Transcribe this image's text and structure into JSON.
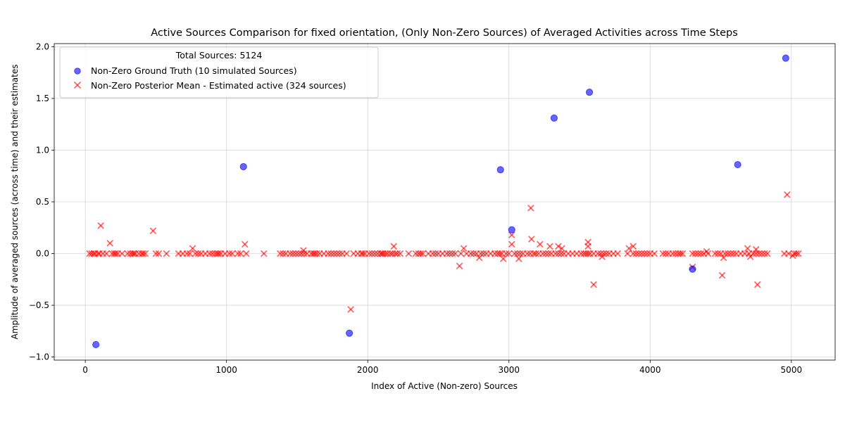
{
  "chart_data": {
    "type": "scatter",
    "title": "Active Sources Comparison for fixed orientation, (Only Non-Zero Sources) of Averaged Activities across Time Steps",
    "xlabel": "Index of Active (Non-zero) Sources",
    "ylabel": "Amplitude of averaged sources (across time) and their estimates",
    "xlim": [
      -220,
      5310
    ],
    "ylim": [
      -1.03,
      2.03
    ],
    "xticks": [
      0,
      1000,
      2000,
      3000,
      4000,
      5000
    ],
    "yticks": [
      -1.0,
      -0.5,
      0.0,
      0.5,
      1.0,
      1.5,
      2.0
    ],
    "xtick_labels": [
      "0",
      "1000",
      "2000",
      "3000",
      "4000",
      "5000"
    ],
    "ytick_labels": [
      "−1.0",
      "−0.5",
      "0.0",
      "0.5",
      "1.0",
      "1.5",
      "2.0"
    ],
    "grid": true,
    "legend": {
      "placement": "top-left",
      "title": "Total Sources: 5124",
      "entries": [
        {
          "label": "Non-Zero Ground Truth (10 simulated Sources)",
          "color": "#0000ff",
          "marker": "circle"
        },
        {
          "label": "Non-Zero Posterior Mean - Estimated active (324 sources)",
          "color": "#ff0000",
          "marker": "x"
        }
      ]
    },
    "series": [
      {
        "name": "Non-Zero Ground Truth (10 simulated Sources)",
        "color": "#0000ff",
        "marker": "circle",
        "points": [
          [
            75,
            -0.88
          ],
          [
            1120,
            0.84
          ],
          [
            1870,
            -0.77
          ],
          [
            2940,
            0.81
          ],
          [
            3020,
            0.23
          ],
          [
            3320,
            1.31
          ],
          [
            3570,
            1.56
          ],
          [
            4300,
            -0.15
          ],
          [
            4620,
            0.86
          ],
          [
            4960,
            1.89
          ]
        ]
      },
      {
        "name": "Non-Zero Posterior Mean - Estimated active (324 sources)",
        "color": "#ff0000",
        "marker": "x",
        "points": [
          [
            110,
            0.27
          ],
          [
            175,
            0.1
          ],
          [
            480,
            0.22
          ],
          [
            760,
            0.05
          ],
          [
            1130,
            0.09
          ],
          [
            1545,
            0.03
          ],
          [
            1880,
            -0.54
          ],
          [
            2185,
            0.07
          ],
          [
            2650,
            -0.12
          ],
          [
            2680,
            0.05
          ],
          [
            2790,
            -0.04
          ],
          [
            2960,
            -0.05
          ],
          [
            3020,
            0.18
          ],
          [
            3020,
            0.09
          ],
          [
            3070,
            -0.05
          ],
          [
            3155,
            0.44
          ],
          [
            3160,
            0.14
          ],
          [
            3220,
            0.09
          ],
          [
            3290,
            0.07
          ],
          [
            3350,
            0.07
          ],
          [
            3375,
            0.05
          ],
          [
            3560,
            0.11
          ],
          [
            3560,
            0.07
          ],
          [
            3600,
            -0.3
          ],
          [
            3660,
            -0.03
          ],
          [
            3850,
            0.05
          ],
          [
            3880,
            0.07
          ],
          [
            4300,
            -0.13
          ],
          [
            4400,
            0.02
          ],
          [
            4510,
            -0.21
          ],
          [
            4520,
            -0.04
          ],
          [
            4690,
            0.05
          ],
          [
            4710,
            -0.03
          ],
          [
            4750,
            0.04
          ],
          [
            4760,
            -0.3
          ],
          [
            4970,
            0.57
          ],
          [
            5010,
            -0.02
          ]
        ],
        "zero_indices": [
          30,
          45,
          60,
          70,
          90,
          100,
          125,
          150,
          190,
          205,
          215,
          230,
          260,
          300,
          320,
          335,
          345,
          355,
          380,
          400,
          410,
          425,
          500,
          520,
          575,
          660,
          690,
          720,
          740,
          780,
          800,
          820,
          850,
          880,
          900,
          920,
          935,
          945,
          960,
          990,
          1020,
          1040,
          1080,
          1100,
          1140,
          1265,
          1380,
          1400,
          1420,
          1450,
          1470,
          1490,
          1510,
          1530,
          1550,
          1570,
          1600,
          1615,
          1625,
          1640,
          1660,
          1690,
          1720,
          1740,
          1760,
          1780,
          1800,
          1820,
          1850,
          1900,
          1930,
          1955,
          1965,
          1980,
          2010,
          2030,
          2050,
          2070,
          2090,
          2100,
          2110,
          2125,
          2140,
          2160,
          2175,
          2195,
          2210,
          2230,
          2290,
          2340,
          2360,
          2375,
          2390,
          2430,
          2460,
          2480,
          2500,
          2530,
          2560,
          2580,
          2600,
          2620,
          2660,
          2700,
          2730,
          2750,
          2770,
          2800,
          2820,
          2840,
          2870,
          2900,
          2920,
          2935,
          2950,
          2980,
          3000,
          3040,
          3060,
          3080,
          3100,
          3130,
          3150,
          3175,
          3190,
          3210,
          3240,
          3260,
          3280,
          3300,
          3330,
          3350,
          3370,
          3390,
          3420,
          3450,
          3480,
          3510,
          3530,
          3545,
          3560,
          3575,
          3600,
          3630,
          3650,
          3670,
          3690,
          3710,
          3740,
          3770,
          3840,
          3880,
          3900,
          3920,
          3940,
          3960,
          3980,
          4000,
          4030,
          4090,
          4110,
          4130,
          4160,
          4180,
          4200,
          4215,
          4230,
          4300,
          4320,
          4340,
          4360,
          4380,
          4410,
          4460,
          4480,
          4500,
          4530,
          4550,
          4570,
          4590,
          4610,
          4640,
          4670,
          4700,
          4730,
          4750,
          4770,
          4790,
          4810,
          4830,
          4950,
          4980,
          5020,
          5035,
          5050
        ]
      }
    ]
  }
}
